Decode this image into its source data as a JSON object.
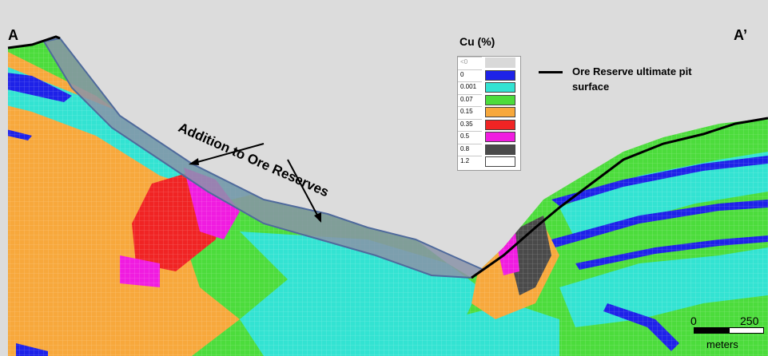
{
  "section_labels": {
    "start": "A",
    "end": "A’"
  },
  "legend": {
    "title": "Cu (%)",
    "rows": [
      {
        "value": "<0",
        "color": "#d9d9d9"
      },
      {
        "value": "0",
        "color": "#1e22e8"
      },
      {
        "value": "0.001",
        "color": "#33e3d2"
      },
      {
        "value": "0.07",
        "color": "#4cdc3c"
      },
      {
        "value": "0.15",
        "color": "#f7a83c"
      },
      {
        "value": "0.35",
        "color": "#f02424"
      },
      {
        "value": "0.5",
        "color": "#f01ce0"
      },
      {
        "value": "0.8",
        "color": "#4a4a4a"
      },
      {
        "value": "1.2",
        "color": "#ffffff"
      }
    ]
  },
  "line_key": {
    "label": "Ore Reserve ultimate pit surface"
  },
  "annotation": {
    "text": "Addition to Ore Reserves"
  },
  "scale_bar": {
    "min": "0",
    "max": "250",
    "unit": "meters"
  },
  "colors": {
    "background": "#dcdcdc",
    "addition_fill": "#8a93a8",
    "addition_outline": "#4f6a9c",
    "pit_line": "#000000"
  }
}
